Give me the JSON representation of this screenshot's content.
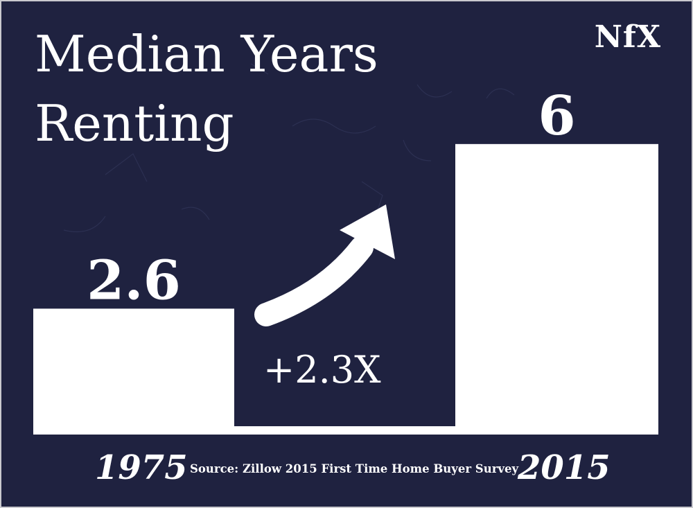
{
  "title_lines": [
    "Median Years",
    "Renting"
  ],
  "logo": "NfX",
  "growth_label": "+2.3X",
  "source": "Source: Zillow 2015 First Time Home Buyer Survey",
  "colors": {
    "background": "#1f2240",
    "bars": "#ffffff",
    "text": "#ffffff"
  },
  "chart_data": {
    "type": "bar",
    "categories": [
      "1975",
      "2015"
    ],
    "values": [
      2.6,
      6
    ],
    "data_labels": [
      "2.6",
      "6"
    ],
    "title": "Median Years Renting",
    "xlabel": "",
    "ylabel": "",
    "ylim": [
      0,
      7.2
    ],
    "grid": false,
    "legend": "none"
  }
}
